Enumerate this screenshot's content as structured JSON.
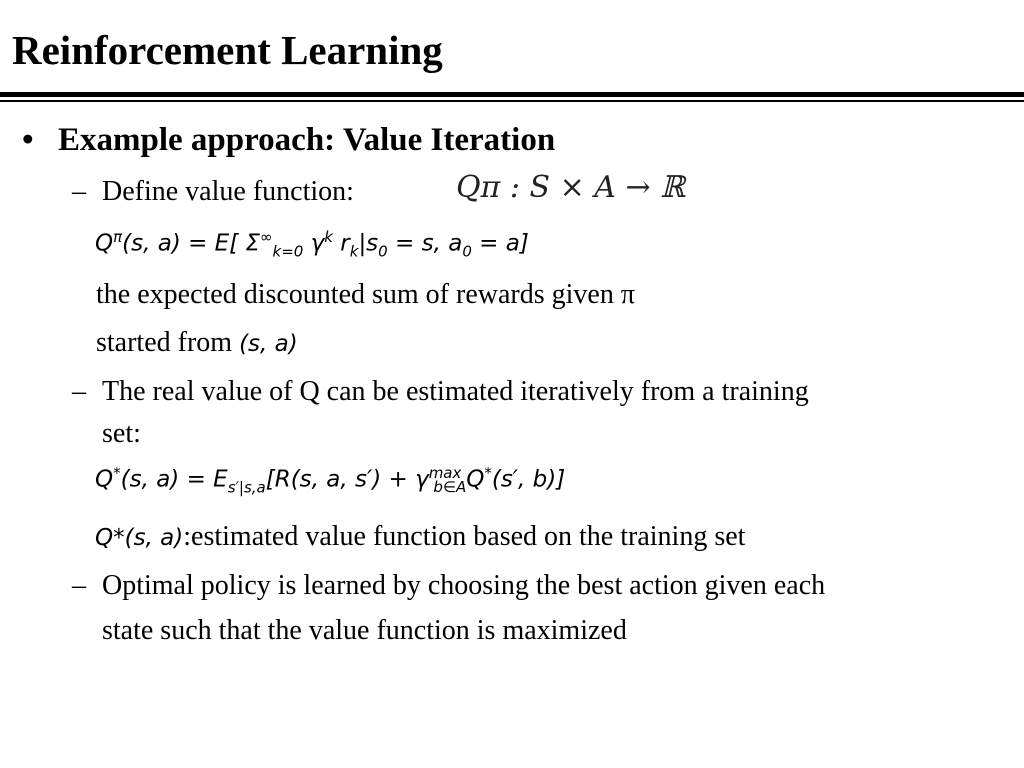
{
  "slide": {
    "title": "Reinforcement Learning",
    "bullet": "Example approach: Value Iteration",
    "bullet_marker": "•",
    "dash": "–",
    "define_label": "Define value function:",
    "define_math": "Qπ : S × A → ℝ",
    "q_pi_formula": {
      "lhs": "Q",
      "lhs_sup": "π",
      "args": "(s, a) = E[ Σ",
      "sum_sup": "∞",
      "sum_sub": "k=0",
      "gamma": " γ",
      "gamma_sup": "k",
      "r": " r",
      "r_sub": "k",
      "cond": "|s",
      "s_sub": "0",
      "eq": " = s, a",
      "a_sub": "0",
      "tail": " = a]"
    },
    "expected_text": "the expected discounted sum of rewards given π",
    "started_text": "started from ",
    "started_math": "(s, a)",
    "real_value_text_1": "The real value of Q can be estimated iteratively from a training",
    "real_value_text_2": "set:",
    "q_star_formula": {
      "lhs": "Q",
      "lhs_sup": "*",
      "args": "(s, a) = E",
      "e_sub": "s′|s,a",
      "mid": "[R(s, a, s′) + γ",
      "max_sup": "max",
      "max_sub": "b∈A",
      "tail_q": "Q",
      "tail_sup": "*",
      "tail": "(s′, b)]"
    },
    "estimated_math": "Q*(s, a)",
    "estimated_text": ":estimated value function based on the training set",
    "optimal_text_1": "Optimal policy is learned by choosing the best action given each",
    "optimal_text_2": "state such that the value function is maximized"
  }
}
